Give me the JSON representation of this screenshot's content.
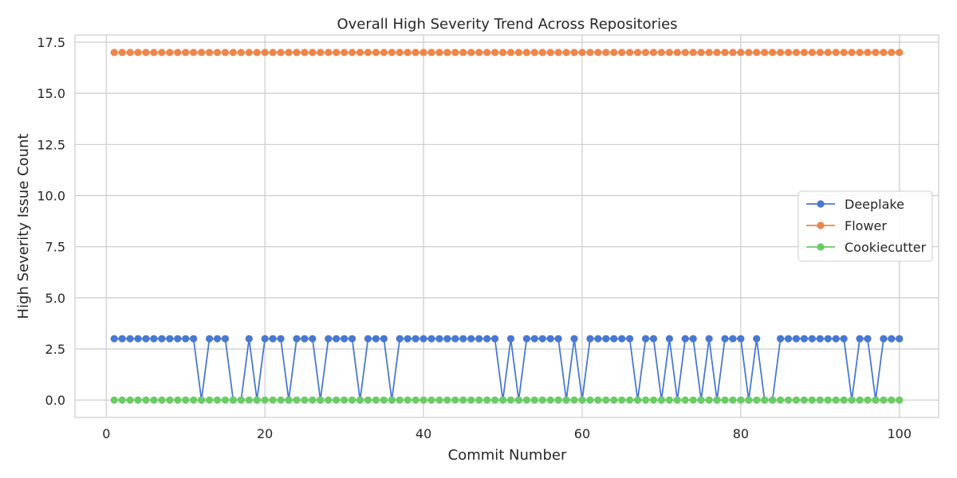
{
  "chart_data": {
    "type": "line",
    "title": "Overall High Severity Trend Across Repositories",
    "xlabel": "Commit Number",
    "ylabel": "High Severity Issue Count",
    "xlim": [
      -3.95,
      104.95
    ],
    "ylim": [
      -0.85,
      17.85
    ],
    "xticks": [
      0,
      20,
      40,
      60,
      80,
      100
    ],
    "xtick_labels": [
      "0",
      "20",
      "40",
      "60",
      "80",
      "100"
    ],
    "yticks": [
      0,
      2.5,
      5,
      7.5,
      10,
      12.5,
      15,
      17.5
    ],
    "ytick_labels": [
      "0.0",
      "2.5",
      "5.0",
      "7.5",
      "10.0",
      "12.5",
      "15.0",
      "17.5"
    ],
    "grid": true,
    "legend_position": "center-right",
    "x": [
      1,
      2,
      3,
      4,
      5,
      6,
      7,
      8,
      9,
      10,
      11,
      12,
      13,
      14,
      15,
      16,
      17,
      18,
      19,
      20,
      21,
      22,
      23,
      24,
      25,
      26,
      27,
      28,
      29,
      30,
      31,
      32,
      33,
      34,
      35,
      36,
      37,
      38,
      39,
      40,
      41,
      42,
      43,
      44,
      45,
      46,
      47,
      48,
      49,
      50,
      51,
      52,
      53,
      54,
      55,
      56,
      57,
      58,
      59,
      60,
      61,
      62,
      63,
      64,
      65,
      66,
      67,
      68,
      69,
      70,
      71,
      72,
      73,
      74,
      75,
      76,
      77,
      78,
      79,
      80,
      81,
      82,
      83,
      84,
      85,
      86,
      87,
      88,
      89,
      90,
      91,
      92,
      93,
      94,
      95,
      96,
      97,
      98,
      99,
      100
    ],
    "series": [
      {
        "name": "Deeplake",
        "color": "#4878d0",
        "values": [
          3,
          3,
          3,
          3,
          3,
          3,
          3,
          3,
          3,
          3,
          3,
          0,
          3,
          3,
          3,
          0,
          0,
          3,
          0,
          3,
          3,
          3,
          0,
          3,
          3,
          3,
          0,
          3,
          3,
          3,
          3,
          0,
          3,
          3,
          3,
          0,
          3,
          3,
          3,
          3,
          3,
          3,
          3,
          3,
          3,
          3,
          3,
          3,
          3,
          0,
          3,
          0,
          3,
          3,
          3,
          3,
          3,
          0,
          3,
          0,
          3,
          3,
          3,
          3,
          3,
          3,
          0,
          3,
          3,
          0,
          3,
          0,
          3,
          3,
          0,
          3,
          0,
          3,
          3,
          3,
          0,
          3,
          0,
          0,
          3,
          3,
          3,
          3,
          3,
          3,
          3,
          3,
          3,
          0,
          3,
          3,
          0,
          3,
          3,
          3
        ]
      },
      {
        "name": "Flower",
        "color": "#ee854a",
        "values": [
          17,
          17,
          17,
          17,
          17,
          17,
          17,
          17,
          17,
          17,
          17,
          17,
          17,
          17,
          17,
          17,
          17,
          17,
          17,
          17,
          17,
          17,
          17,
          17,
          17,
          17,
          17,
          17,
          17,
          17,
          17,
          17,
          17,
          17,
          17,
          17,
          17,
          17,
          17,
          17,
          17,
          17,
          17,
          17,
          17,
          17,
          17,
          17,
          17,
          17,
          17,
          17,
          17,
          17,
          17,
          17,
          17,
          17,
          17,
          17,
          17,
          17,
          17,
          17,
          17,
          17,
          17,
          17,
          17,
          17,
          17,
          17,
          17,
          17,
          17,
          17,
          17,
          17,
          17,
          17,
          17,
          17,
          17,
          17,
          17,
          17,
          17,
          17,
          17,
          17,
          17,
          17,
          17,
          17,
          17,
          17,
          17,
          17,
          17,
          17
        ]
      },
      {
        "name": "Cookiecutter",
        "color": "#6acc64",
        "values": [
          0,
          0,
          0,
          0,
          0,
          0,
          0,
          0,
          0,
          0,
          0,
          0,
          0,
          0,
          0,
          0,
          0,
          0,
          0,
          0,
          0,
          0,
          0,
          0,
          0,
          0,
          0,
          0,
          0,
          0,
          0,
          0,
          0,
          0,
          0,
          0,
          0,
          0,
          0,
          0,
          0,
          0,
          0,
          0,
          0,
          0,
          0,
          0,
          0,
          0,
          0,
          0,
          0,
          0,
          0,
          0,
          0,
          0,
          0,
          0,
          0,
          0,
          0,
          0,
          0,
          0,
          0,
          0,
          0,
          0,
          0,
          0,
          0,
          0,
          0,
          0,
          0,
          0,
          0,
          0,
          0,
          0,
          0,
          0,
          0,
          0,
          0,
          0,
          0,
          0,
          0,
          0,
          0,
          0,
          0,
          0,
          0,
          0,
          0,
          0
        ]
      }
    ]
  }
}
